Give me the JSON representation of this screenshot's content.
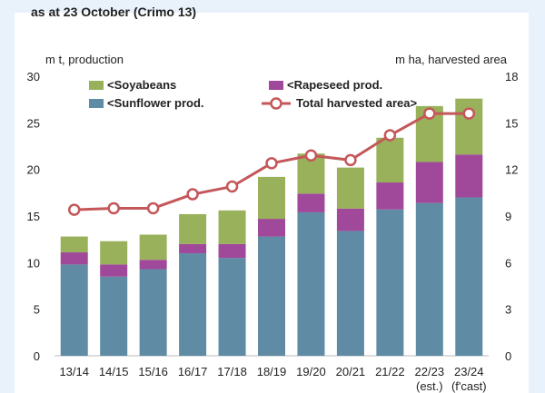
{
  "header": {
    "cut_title": "as at 23 October (Crimo 13)"
  },
  "colors": {
    "soyabeans": "#98b15a",
    "rapeseed": "#a0489a",
    "sunflower": "#5f8ba5",
    "area_line": "#c4575a",
    "marker_fill": "#ffffff",
    "text": "#222222"
  },
  "chart_data": {
    "type": "bar",
    "stacked": true,
    "categories": [
      "13/14",
      "14/15",
      "15/16",
      "16/17",
      "17/18",
      "18/19",
      "19/20",
      "20/21",
      "21/22",
      "22/23",
      "23/24"
    ],
    "category_sublabels": [
      "",
      "",
      "",
      "",
      "",
      "",
      "",
      "",
      "",
      "(est.)",
      "(f'cast)"
    ],
    "ylabel_left": "m t, production",
    "ylabel_right": "m ha, harvested area",
    "ylim_left": [
      0,
      30
    ],
    "yticks_left": [
      "0",
      "5",
      "10",
      "15",
      "20",
      "25",
      "30"
    ],
    "ylim_right": [
      0,
      18
    ],
    "yticks_right": [
      "0",
      "3",
      "6",
      "9",
      "12",
      "15",
      "18"
    ],
    "grid": false,
    "legend_position": "top",
    "series": [
      {
        "name": "<Sunflower prod.",
        "key": "sunflower",
        "axis": "left",
        "values": [
          9.8,
          8.5,
          9.3,
          11.0,
          10.5,
          12.8,
          15.4,
          13.4,
          15.7,
          16.4,
          17.0
        ]
      },
      {
        "name": "<Rapeseed prod.",
        "key": "rapeseed",
        "axis": "left",
        "values": [
          1.3,
          1.3,
          1.0,
          1.0,
          1.5,
          1.9,
          2.0,
          2.4,
          2.9,
          4.4,
          4.6
        ]
      },
      {
        "name": "<Soyabeans",
        "key": "soyabeans",
        "axis": "left",
        "values": [
          1.7,
          2.5,
          2.7,
          3.2,
          3.6,
          4.5,
          4.3,
          4.4,
          4.8,
          6.0,
          6.0
        ]
      },
      {
        "name": "Total harvested area>",
        "key": "area",
        "type": "line",
        "axis": "right",
        "values": [
          9.4,
          9.5,
          9.5,
          10.4,
          10.9,
          12.4,
          12.9,
          12.6,
          14.2,
          15.6,
          15.6
        ]
      }
    ],
    "legend": [
      {
        "label": "<Soyabeans",
        "key": "soyabeans",
        "kind": "box"
      },
      {
        "label": "<Rapeseed prod.",
        "key": "rapeseed",
        "kind": "box"
      },
      {
        "label": "<Sunflower prod.",
        "key": "sunflower",
        "kind": "box"
      },
      {
        "label": "Total harvested area>",
        "key": "area",
        "kind": "line"
      }
    ]
  }
}
